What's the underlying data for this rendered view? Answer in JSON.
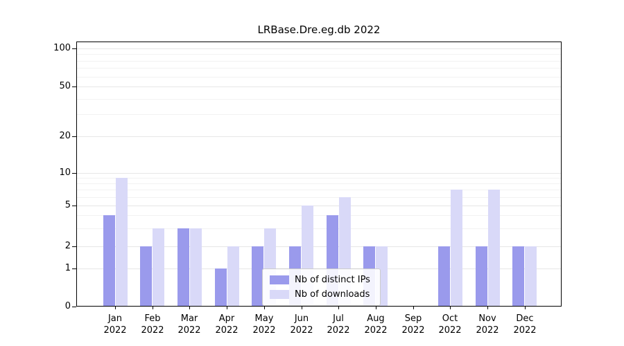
{
  "chart": {
    "title": "LRBase.Dre.eg.db 2022"
  },
  "chart_data": {
    "type": "bar",
    "title": "LRBase.Dre.eg.db 2022",
    "categories": [
      "Jan",
      "Feb",
      "Mar",
      "Apr",
      "May",
      "Jun",
      "Jul",
      "Aug",
      "Sep",
      "Oct",
      "Nov",
      "Dec"
    ],
    "year_label": "2022",
    "series": [
      {
        "name": "Nb of distinct IPs",
        "color": "#9a9aec",
        "values": [
          4,
          2,
          3,
          1,
          2,
          2,
          4,
          2,
          0,
          2,
          2,
          2
        ]
      },
      {
        "name": "Nb of downloads",
        "color": "#d9d9f8",
        "values": [
          9,
          3,
          3,
          2,
          3,
          5,
          6,
          2,
          0,
          7,
          7,
          2
        ]
      }
    ],
    "yticks": [
      0,
      1,
      2,
      5,
      10,
      20,
      50,
      100
    ],
    "minor_yticks": [
      3,
      4,
      6,
      7,
      8,
      9,
      30,
      40,
      60,
      70,
      80,
      90
    ],
    "scale": "log-like",
    "ylim": [
      0,
      100
    ],
    "grid": true,
    "legend_position": "lower center"
  }
}
